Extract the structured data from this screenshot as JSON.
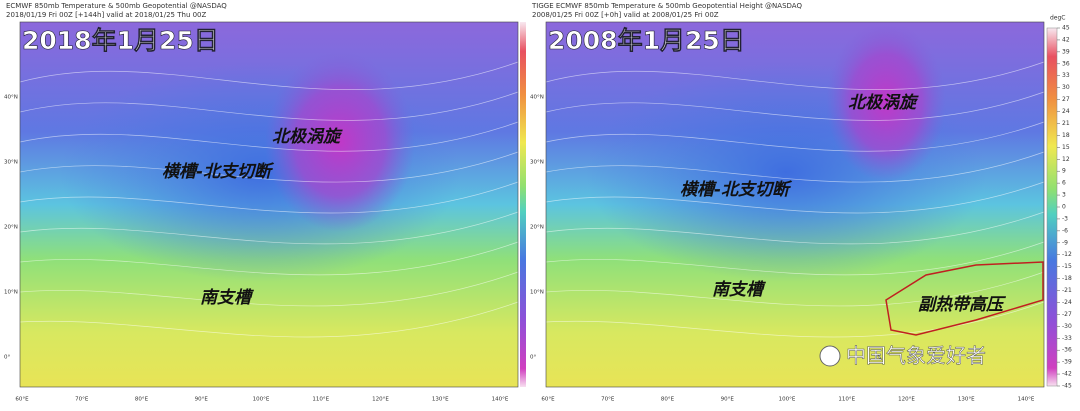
{
  "panels": [
    {
      "header": "ECMWF 850mb Temperature & 500mb Geopotential @NASDAQ",
      "subheader": "2018/01/19 Fri 00Z [+144h] valid at 2018/01/25 Thu 00Z",
      "date": "2018年1月25日",
      "annotations": [
        "北极涡旋",
        "横槽-北支切断",
        "南支槽"
      ],
      "lat_labels": [
        "40°N",
        "30°N",
        "20°N",
        "10°N",
        "0°"
      ],
      "lon_labels": [
        "60°E",
        "70°E",
        "80°E",
        "90°E",
        "100°E",
        "110°E",
        "120°E",
        "130°E",
        "140°E"
      ]
    },
    {
      "header": "TIGGE ECMWF 850mb Temperature & 500mb Geopotential Height @NASDAQ",
      "subheader": "2008/01/25 Fri 00Z [+0h] valid at 2008/01/25 Fri 00Z",
      "date": "2008年1月25日",
      "annotations": [
        "北极涡旋",
        "横槽-北支切断",
        "南支槽",
        "副热带高压"
      ],
      "lat_labels": [
        "40°N",
        "30°N",
        "20°N",
        "10°N",
        "0°"
      ],
      "lon_labels": [
        "60°E",
        "70°E",
        "80°E",
        "90°E",
        "100°E",
        "110°E",
        "120°E",
        "130°E",
        "140°E"
      ]
    }
  ],
  "colorbar": {
    "unit": "degC",
    "ticks": [
      45,
      42,
      39,
      36,
      33,
      30,
      27,
      24,
      21,
      18,
      15,
      12,
      9,
      6,
      3,
      0,
      -3,
      -6,
      -9,
      -12,
      -15,
      -18,
      -21,
      -24,
      -27,
      -30,
      -33,
      -36,
      -39,
      -42,
      -45
    ]
  },
  "watermark": "中国气象爱好者"
}
